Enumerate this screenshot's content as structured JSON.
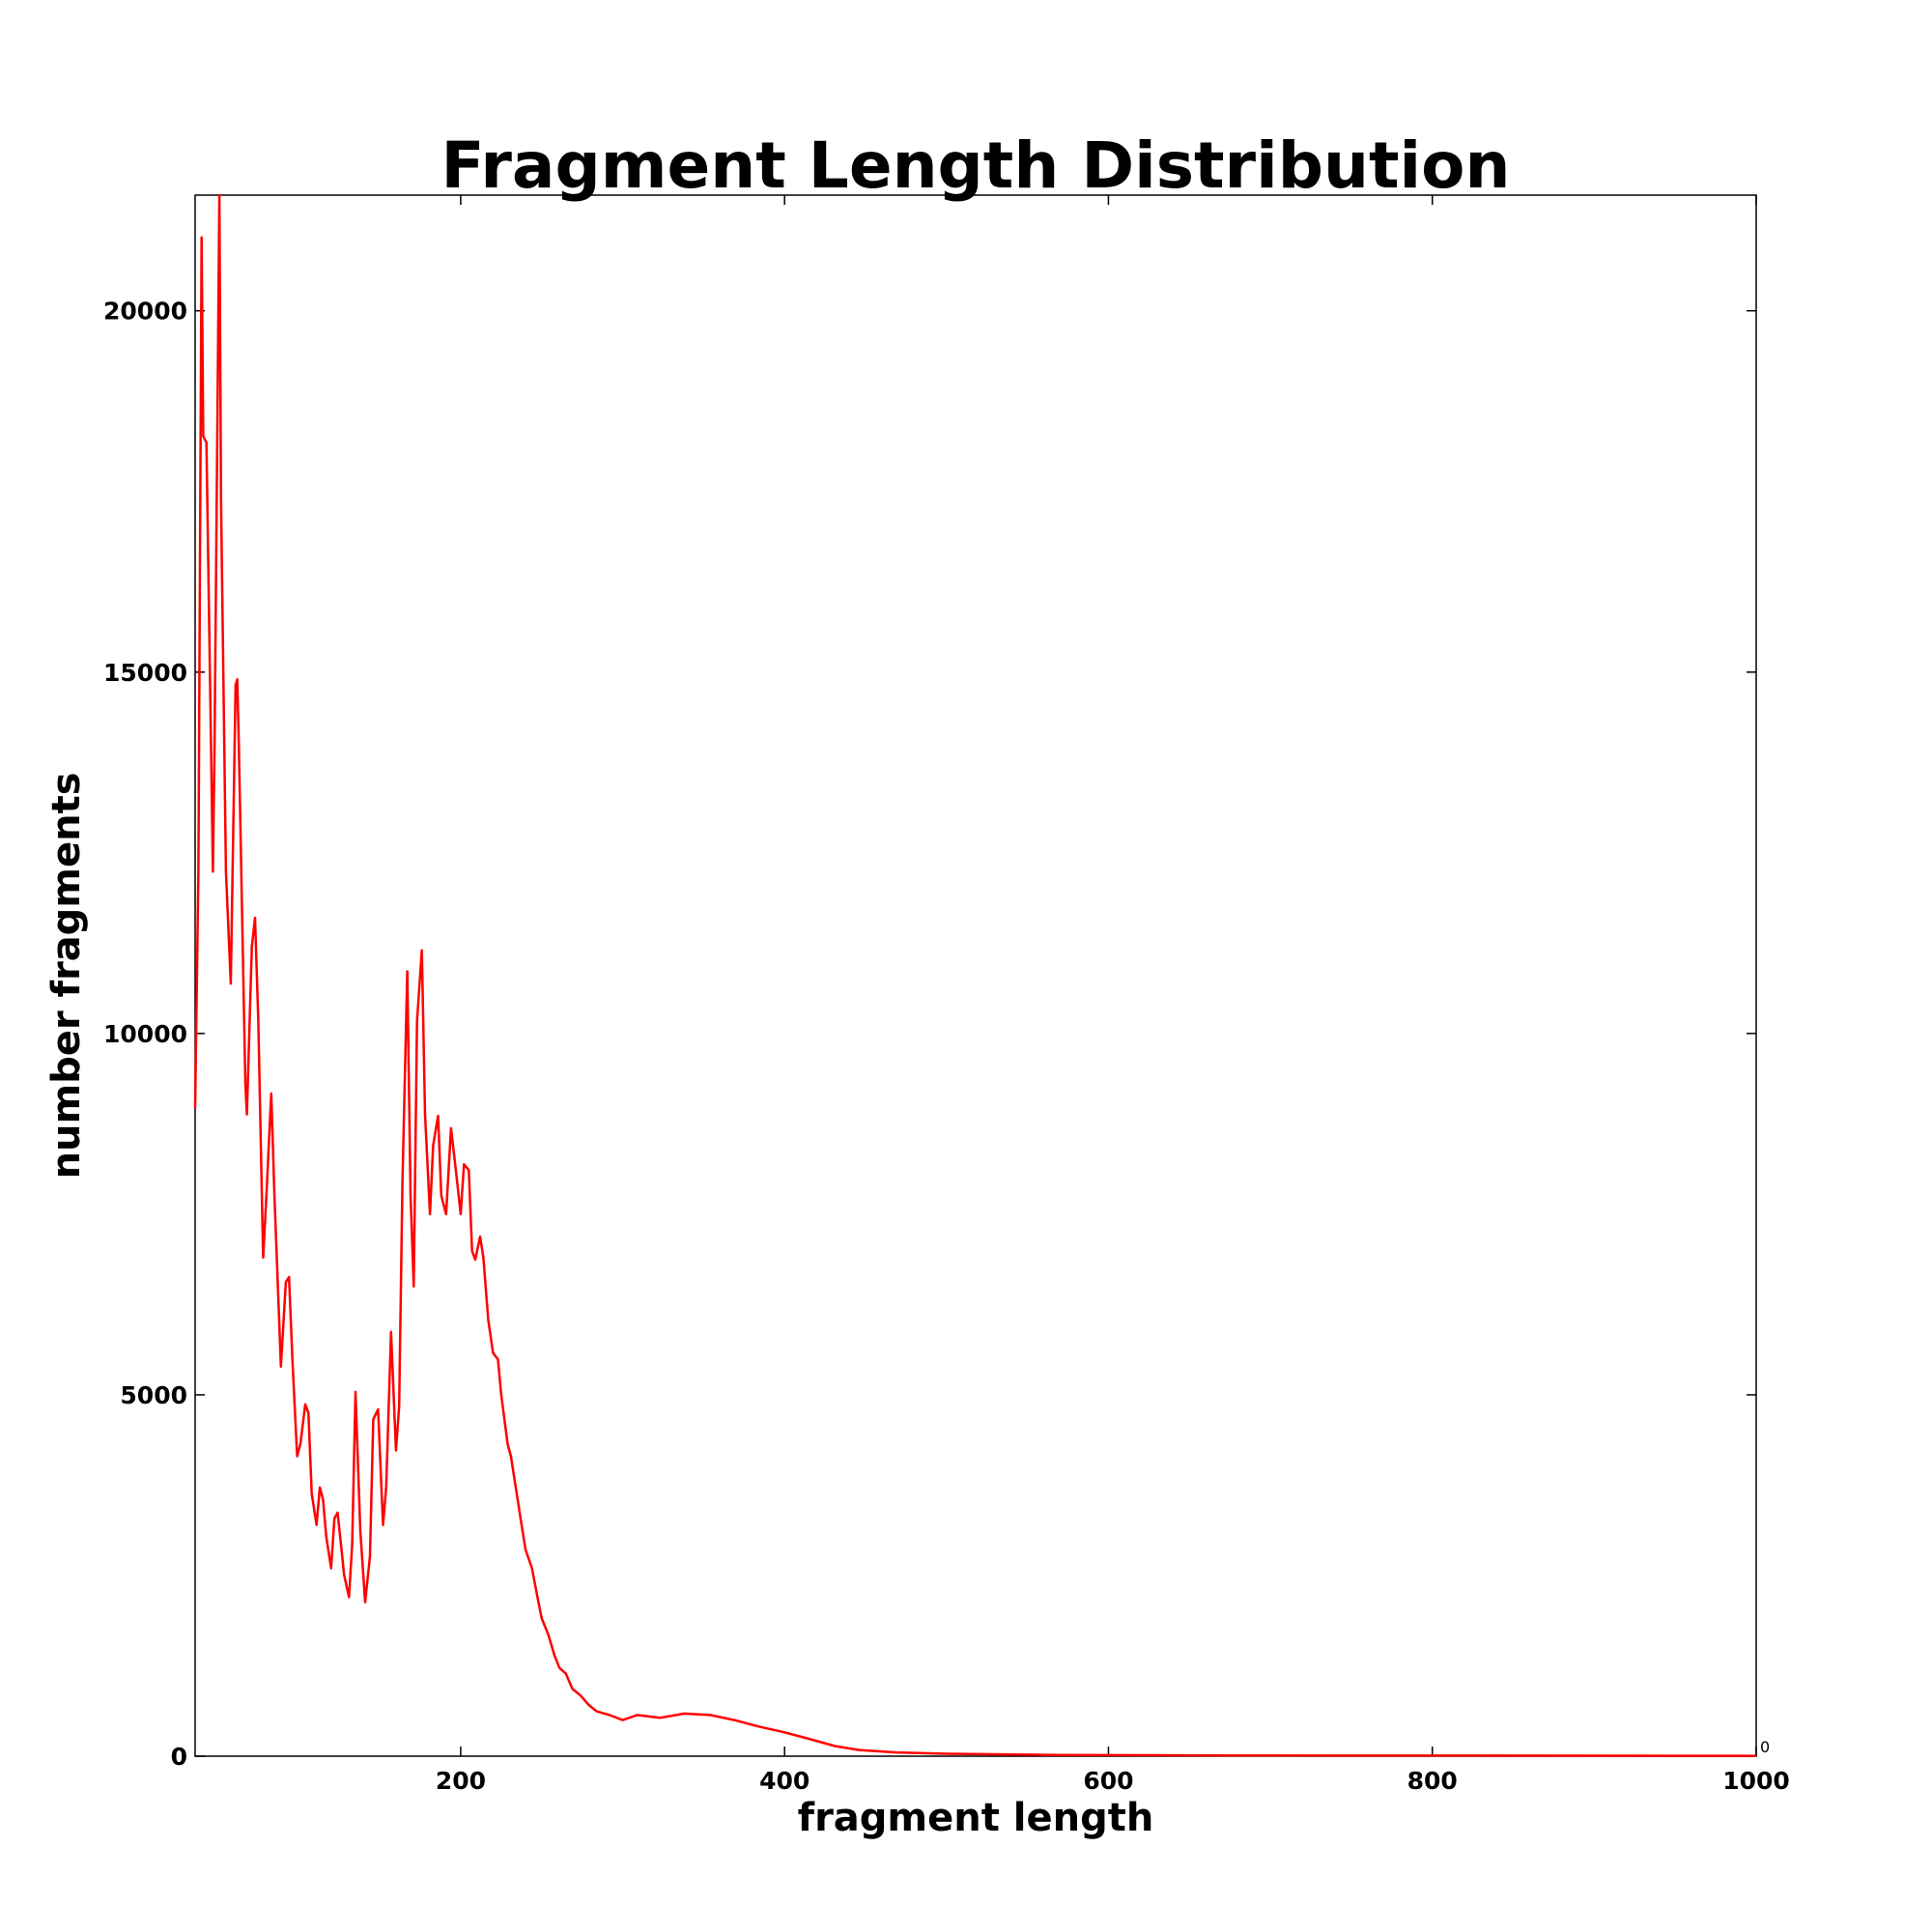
{
  "chart_data": {
    "type": "line",
    "title": "Fragment Length Distribution",
    "xlabel": "fragment length",
    "ylabel": "number fragments",
    "annotations": [
      "0"
    ],
    "color": "#ff0000",
    "x": [
      36,
      38,
      40,
      41,
      43,
      47,
      48,
      51,
      52,
      55,
      58,
      61,
      62,
      63,
      67,
      68,
      71,
      73,
      75,
      78,
      80,
      83,
      85,
      89,
      92,
      94,
      96,
      99,
      101,
      104,
      106,
      108,
      111,
      113,
      115,
      117,
      120,
      122,
      124,
      126,
      128,
      131,
      133,
      135,
      138,
      141,
      144,
      146,
      149,
      152,
      154,
      157,
      160,
      162,
      164,
      167,
      169,
      171,
      173,
      176,
      178,
      181,
      183,
      186,
      188,
      191,
      194,
      197,
      200,
      202,
      205,
      207,
      209,
      212,
      214,
      217,
      220,
      223,
      225,
      229,
      231,
      234,
      237,
      240,
      244,
      247,
      250,
      254,
      258,
      261,
      265,
      269,
      274,
      279,
      284,
      292,
      300,
      309,
      323,
      338,
      354,
      369,
      384,
      400,
      415,
      431,
      446,
      469,
      500,
      569,
      684,
      1000
    ],
    "values": [
      8967,
      12240,
      21015,
      18262,
      18175,
      12240,
      13960,
      21600,
      17400,
      12240,
      10690,
      14820,
      14900,
      13960,
      9310,
      8880,
      11200,
      11600,
      10170,
      6900,
      7760,
      9170,
      7760,
      5390,
      6560,
      6630,
      5520,
      4150,
      4320,
      4870,
      4750,
      3630,
      3200,
      3720,
      3550,
      3030,
      2600,
      3290,
      3370,
      2940,
      2510,
      2200,
      2940,
      5040,
      3120,
      2130,
      2770,
      4660,
      4800,
      3200,
      3720,
      5870,
      4230,
      4840,
      7930,
      10860,
      7760,
      6500,
      10170,
      11150,
      8880,
      7500,
      8450,
      8860,
      7760,
      7500,
      8690,
      8110,
      7500,
      8190,
      8110,
      6990,
      6870,
      7190,
      6900,
      6040,
      5580,
      5490,
      5010,
      4320,
      4150,
      3720,
      3290,
      2860,
      2600,
      2250,
      1910,
      1690,
      1390,
      1220,
      1140,
      930,
      840,
      710,
      620,
      570,
      500,
      570,
      530,
      590,
      570,
      500,
      410,
      330,
      240,
      140,
      86,
      52,
      34,
      17,
      9,
      5
    ],
    "xlim": [
      36,
      1000
    ],
    "xticks": [
      200,
      400,
      600,
      800,
      1000
    ],
    "ylim": [
      0,
      21600
    ],
    "yticks": [
      0,
      5000,
      10000,
      15000,
      20000
    ]
  }
}
